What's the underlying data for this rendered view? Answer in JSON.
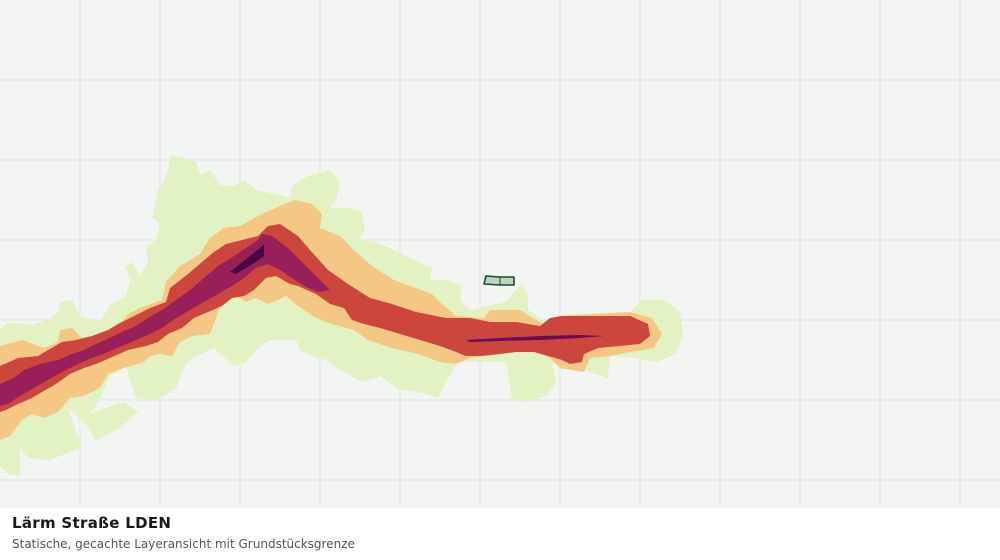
{
  "caption": {
    "title": "Lärm Straße LDEN",
    "subtitle": "Statische, gecachte Layeransicht mit Grundstücksgrenze"
  },
  "map": {
    "background_color": "#f3f5f2",
    "grid_color": "#dfe2df",
    "noise_bands": [
      {
        "level": 1,
        "color": "#e2f2c2"
      },
      {
        "level": 2,
        "color": "#f5c785"
      },
      {
        "level": 3,
        "color": "#cc463e"
      },
      {
        "level": 4,
        "color": "#991f5a"
      },
      {
        "level": 5,
        "color": "#6b0a5a"
      },
      {
        "level": 6,
        "color": "#4a0642"
      }
    ],
    "parcel": {
      "fill": "#b8d9bf",
      "stroke": "#1e4a2f"
    }
  }
}
